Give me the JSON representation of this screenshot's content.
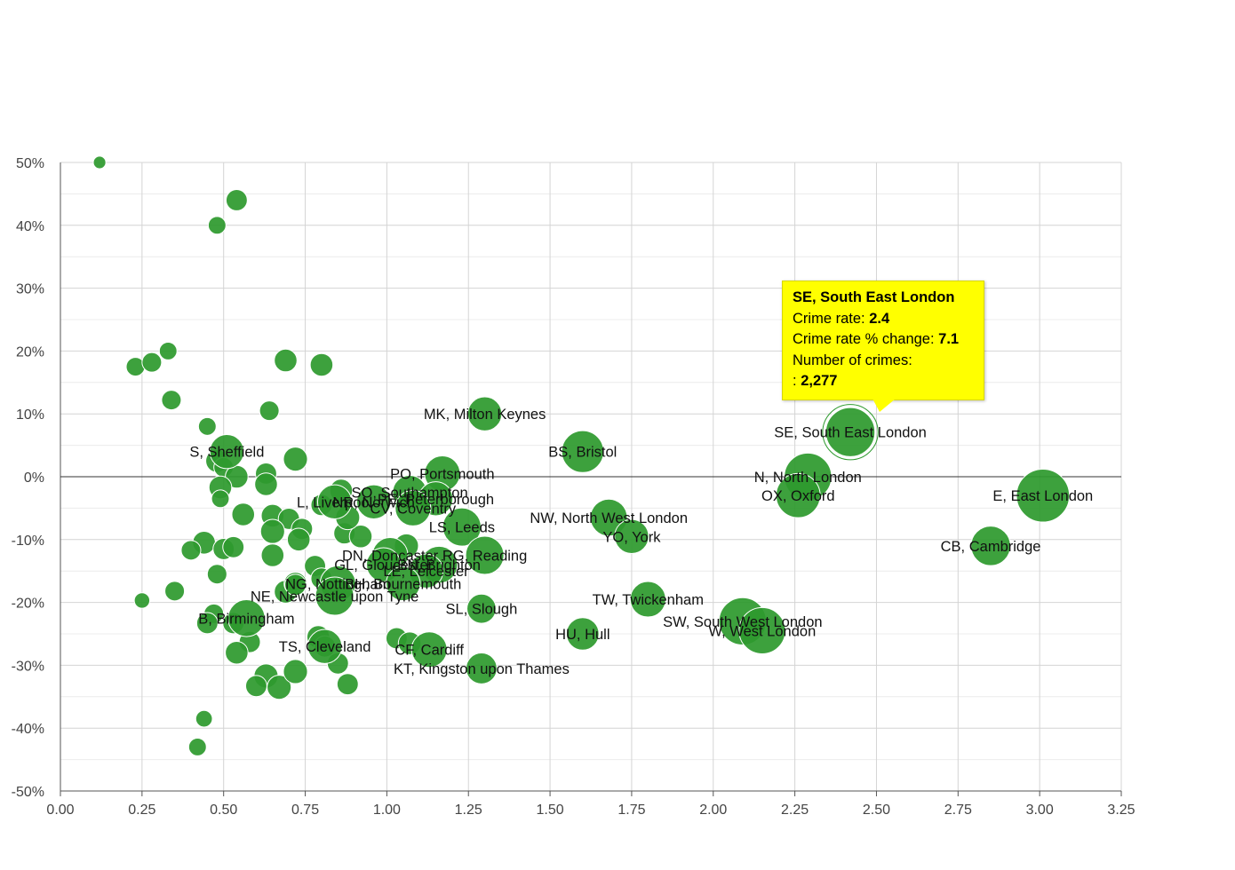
{
  "chart_data": {
    "type": "scatter",
    "title": "",
    "xlabel": "",
    "ylabel": "",
    "xlim": [
      0,
      3.25
    ],
    "ylim": [
      -50,
      50
    ],
    "x_ticks": [
      "0.00",
      "0.25",
      "0.50",
      "0.75",
      "1.00",
      "1.25",
      "1.50",
      "1.75",
      "2.00",
      "2.25",
      "2.50",
      "2.75",
      "3.00",
      "3.25"
    ],
    "y_ticks": [
      "50%",
      "40%",
      "30%",
      "20%",
      "10%",
      "0%",
      "-10%",
      "-20%",
      "-30%",
      "-40%",
      "-50%"
    ],
    "grid": true,
    "bubble_color": "#2e9a2e",
    "labeled_points": [
      {
        "label": "E, East London",
        "x": 3.01,
        "y": -3,
        "size": 2.6
      },
      {
        "label": "SE, South East London",
        "x": 2.42,
        "y": 7.1,
        "size": 2.277
      },
      {
        "label": "N, North London",
        "x": 2.29,
        "y": 0,
        "size": 2.0
      },
      {
        "label": "OX, Oxford",
        "x": 2.26,
        "y": -3,
        "size": 1.7
      },
      {
        "label": "CB, Cambridge",
        "x": 2.85,
        "y": -11,
        "size": 1.3
      },
      {
        "label": "SW, South West London",
        "x": 2.09,
        "y": -23,
        "size": 2.0
      },
      {
        "label": "W, West London",
        "x": 2.15,
        "y": -24.5,
        "size": 1.9
      },
      {
        "label": "MK, Milton Keynes",
        "x": 1.3,
        "y": 10,
        "size": 0.9
      },
      {
        "label": "BS, Bristol",
        "x": 1.6,
        "y": 4,
        "size": 1.5
      },
      {
        "label": "NW, North West London",
        "x": 1.68,
        "y": -6.5,
        "size": 1.1
      },
      {
        "label": "YO, York",
        "x": 1.75,
        "y": -9.5,
        "size": 0.9
      },
      {
        "label": "TW, Twickenham",
        "x": 1.8,
        "y": -19.5,
        "size": 1.0
      },
      {
        "label": "HU, Hull",
        "x": 1.6,
        "y": -25,
        "size": 0.8
      },
      {
        "label": "SL, Slough",
        "x": 1.29,
        "y": -21,
        "size": 0.6
      },
      {
        "label": "KT, Kingston upon Thames",
        "x": 1.29,
        "y": -30.5,
        "size": 0.7
      },
      {
        "label": "PO, Portsmouth",
        "x": 1.17,
        "y": 0.5,
        "size": 1.0
      },
      {
        "label": "SO, Southampton",
        "x": 1.07,
        "y": -2.5,
        "size": 0.9
      },
      {
        "label": "PE, Peterborough",
        "x": 1.15,
        "y": -3.5,
        "size": 0.9
      },
      {
        "label": "CV, Coventry",
        "x": 1.08,
        "y": -5,
        "size": 1.0
      },
      {
        "label": "LS, Leeds",
        "x": 1.23,
        "y": -8,
        "size": 1.2
      },
      {
        "label": "RG, Reading",
        "x": 1.3,
        "y": -12.5,
        "size": 1.2
      },
      {
        "label": "DN, Doncaster",
        "x": 1.01,
        "y": -12.5,
        "size": 1.0
      },
      {
        "label": "GL, Gloucester",
        "x": 0.99,
        "y": -14,
        "size": 0.9
      },
      {
        "label": "BN, Brighton",
        "x": 1.16,
        "y": -14,
        "size": 1.1
      },
      {
        "label": "LE, Leicester",
        "x": 1.12,
        "y": -15,
        "size": 0.9
      },
      {
        "label": "NG, Nottingham",
        "x": 0.85,
        "y": -17,
        "size": 1.0
      },
      {
        "label": "BH, Bournemouth",
        "x": 1.05,
        "y": -17,
        "size": 0.9
      },
      {
        "label": "NE, Newcastle upon Tyne",
        "x": 0.84,
        "y": -19,
        "size": 1.2
      },
      {
        "label": "L, Liverpool",
        "x": 0.84,
        "y": -4,
        "size": 0.9
      },
      {
        "label": "NR, Norwich",
        "x": 0.96,
        "y": -4,
        "size": 0.9
      },
      {
        "label": "S, Sheffield",
        "x": 0.51,
        "y": 4,
        "size": 0.9
      },
      {
        "label": "B, Birmingham",
        "x": 0.57,
        "y": -22.5,
        "size": 1.1
      },
      {
        "label": "TS, Cleveland",
        "x": 0.81,
        "y": -27,
        "size": 0.9
      },
      {
        "label": "CF, Cardiff",
        "x": 1.13,
        "y": -27.5,
        "size": 1.0
      }
    ],
    "unlabeled_points": [
      [
        0.12,
        50,
        0.1
      ],
      [
        0.54,
        44,
        0.5
      ],
      [
        0.48,
        40,
        0.3
      ],
      [
        0.23,
        17.5,
        0.35
      ],
      [
        0.28,
        18.2,
        0.4
      ],
      [
        0.33,
        20,
        0.3
      ],
      [
        0.34,
        12.2,
        0.4
      ],
      [
        0.45,
        8,
        0.3
      ],
      [
        0.64,
        10.5,
        0.4
      ],
      [
        0.69,
        18.5,
        0.6
      ],
      [
        0.8,
        17.8,
        0.6
      ],
      [
        0.72,
        2.8,
        0.7
      ],
      [
        0.48,
        2.5,
        0.6
      ],
      [
        0.5,
        1.5,
        0.4
      ],
      [
        0.54,
        0,
        0.6
      ],
      [
        0.63,
        0.5,
        0.5
      ],
      [
        0.63,
        -1.2,
        0.6
      ],
      [
        0.49,
        -1.7,
        0.6
      ],
      [
        0.49,
        -3.5,
        0.3
      ],
      [
        0.56,
        -6,
        0.6
      ],
      [
        0.65,
        -6.2,
        0.6
      ],
      [
        0.7,
        -6.7,
        0.5
      ],
      [
        0.74,
        -8.3,
        0.5
      ],
      [
        0.65,
        -8.7,
        0.7
      ],
      [
        0.73,
        -10,
        0.6
      ],
      [
        0.87,
        -9,
        0.5
      ],
      [
        0.92,
        -9.5,
        0.6
      ],
      [
        0.8,
        -4.5,
        0.5
      ],
      [
        0.86,
        -2.2,
        0.6
      ],
      [
        0.88,
        -6.5,
        0.7
      ],
      [
        1.06,
        -11,
        0.7
      ],
      [
        0.44,
        -10.5,
        0.6
      ],
      [
        0.4,
        -11.7,
        0.4
      ],
      [
        0.5,
        -11.5,
        0.5
      ],
      [
        0.53,
        -11.2,
        0.5
      ],
      [
        0.65,
        -12.5,
        0.6
      ],
      [
        0.78,
        -14.2,
        0.5
      ],
      [
        0.48,
        -15.5,
        0.4
      ],
      [
        0.35,
        -18.2,
        0.4
      ],
      [
        0.25,
        -19.7,
        0.2
      ],
      [
        0.69,
        -18.3,
        0.6
      ],
      [
        0.72,
        -17,
        0.6
      ],
      [
        0.72,
        -17.2,
        0.5
      ],
      [
        0.8,
        -16.2,
        0.5
      ],
      [
        0.47,
        -21.8,
        0.4
      ],
      [
        0.45,
        -23.3,
        0.5
      ],
      [
        0.53,
        -23.3,
        0.5
      ],
      [
        0.58,
        -26.3,
        0.5
      ],
      [
        0.54,
        -28,
        0.6
      ],
      [
        0.79,
        -25.5,
        0.6
      ],
      [
        0.81,
        -27,
        0.5
      ],
      [
        1.03,
        -25.7,
        0.5
      ],
      [
        1.07,
        -26.5,
        0.6
      ],
      [
        0.85,
        -29.7,
        0.5
      ],
      [
        0.63,
        -31.7,
        0.7
      ],
      [
        0.6,
        -33.3,
        0.5
      ],
      [
        0.67,
        -33.5,
        0.7
      ],
      [
        0.72,
        -31,
        0.7
      ],
      [
        0.88,
        -33,
        0.5
      ],
      [
        0.44,
        -38.5,
        0.25
      ],
      [
        0.42,
        -43,
        0.3
      ]
    ],
    "tooltip": {
      "title": "SE, South East London",
      "crime_rate_label": "Crime rate:",
      "crime_rate_value": "2.4",
      "change_label": "Crime rate % change:",
      "change_value": "7.1",
      "crimes_label": "Number of crimes:",
      "crimes_prefix": ":",
      "crimes_value": "2,277"
    },
    "highlighted_point": "SE, South East London"
  }
}
